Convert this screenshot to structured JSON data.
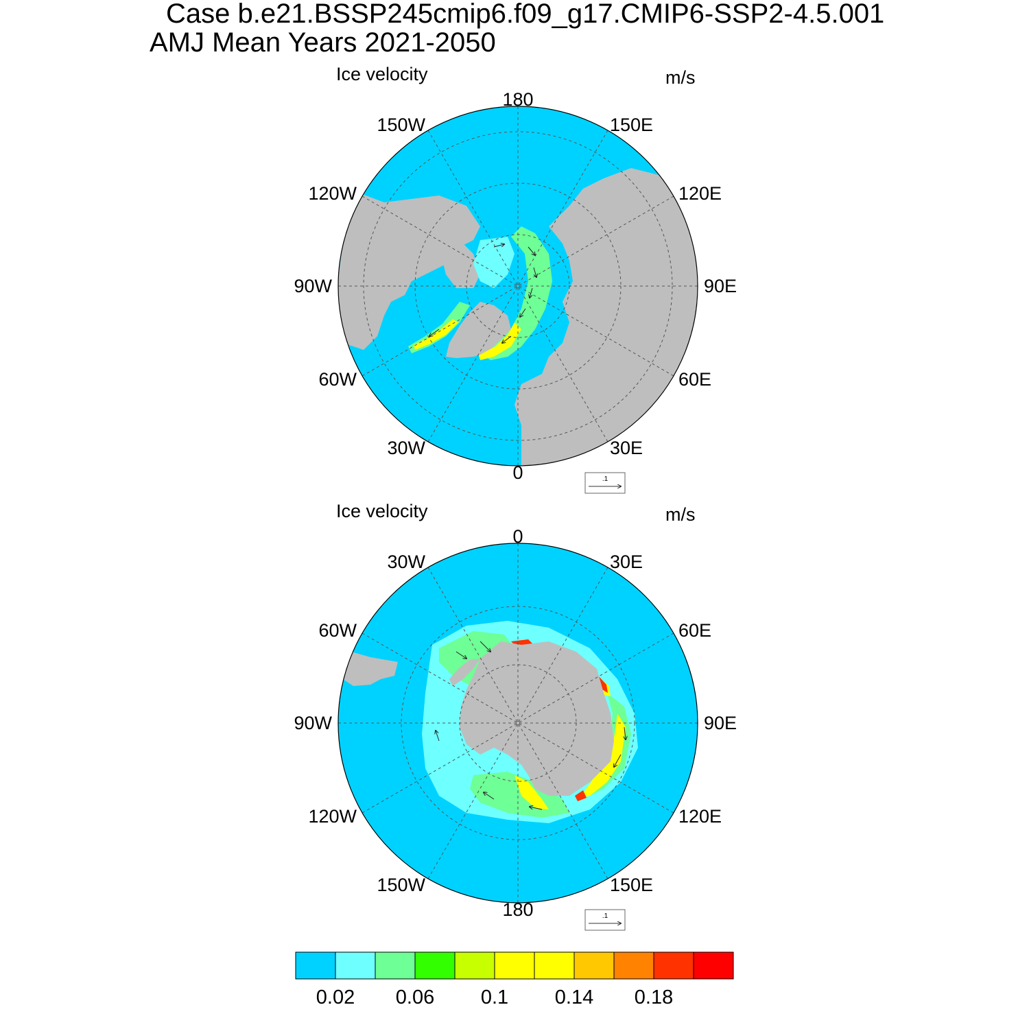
{
  "header": {
    "case_title": "Case b.e21.BSSP245cmip6.f09_g17.CMIP6-SSP2-4.5.001",
    "period_title": "AMJ Mean   Years 2021-2050"
  },
  "panels": [
    {
      "hemisphere": "north",
      "field_label": "Ice velocity",
      "units": "m/s",
      "longitude_labels": {
        "top": "180",
        "bottom": "0",
        "left": "90W",
        "right": "90E",
        "upper_left": "150W",
        "upper_right": "150E",
        "mid_upper_left": "120W",
        "mid_upper_right": "120E",
        "mid_lower_left": "60W",
        "mid_lower_right": "60E",
        "lower_left": "30W",
        "lower_right": "30E"
      },
      "reference_vector_label": ".1"
    },
    {
      "hemisphere": "south",
      "field_label": "Ice velocity",
      "units": "m/s",
      "longitude_labels": {
        "top": "0",
        "bottom": "180",
        "left": "90W",
        "right": "90E",
        "upper_left": "30W",
        "upper_right": "30E",
        "mid_upper_left": "60W",
        "mid_upper_right": "60E",
        "mid_lower_left": "120W",
        "mid_lower_right": "120E",
        "lower_left": "150W",
        "lower_right": "150E"
      },
      "reference_vector_label": ".1"
    }
  ],
  "colorbar": {
    "colors": [
      "#00d2ff",
      "#6effff",
      "#6eff96",
      "#32ff00",
      "#c8ff00",
      "#ffff00",
      "#ffff00",
      "#ffc800",
      "#ff8200",
      "#ff3200",
      "#ff0000"
    ],
    "tick_labels": [
      "0.02",
      "0.06",
      "0.1",
      "0.14",
      "0.18"
    ]
  },
  "map_colors": {
    "ocean_low": "#00d2ff",
    "land": "#bebebe",
    "grid": "#555555"
  }
}
